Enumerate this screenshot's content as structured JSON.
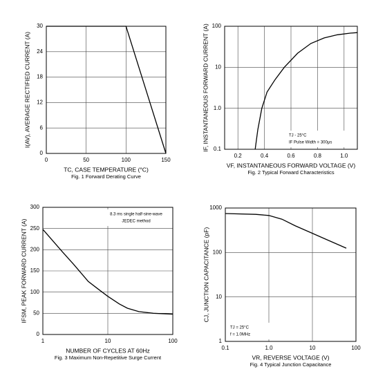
{
  "chart_data": [
    {
      "type": "line",
      "title": "Fig. 1  Forward Derating Curve",
      "xlabel": "TC, CASE TEMPERATURE (°C)",
      "ylabel": "I(AV), AVERAGE RECTIFIED CURRENT (A)",
      "x": [
        0,
        100,
        150
      ],
      "series": [
        {
          "color": "#000000",
          "values": [
            30,
            30,
            0
          ]
        }
      ],
      "xlim": [
        0,
        150
      ],
      "xticks": [
        0,
        50,
        100,
        150
      ],
      "ylim": [
        0,
        30
      ],
      "yticks": [
        0,
        6,
        12,
        18,
        24,
        30
      ],
      "grid": true
    },
    {
      "type": "line",
      "title": "Fig. 2  Typical Forward Characteristics",
      "xlabel": "VF, INSTANTANEOUS FORWARD VOLTAGE (V)",
      "ylabel": "IF, INSTANTANEOUS FORWARD CURRENT (A)",
      "x": [
        0.33,
        0.35,
        0.38,
        0.42,
        0.48,
        0.55,
        0.65,
        0.75,
        0.85,
        0.95,
        1.05,
        1.1
      ],
      "series": [
        {
          "color": "#000000",
          "values": [
            0.1,
            0.3,
            1,
            2.5,
            5,
            10,
            22,
            38,
            52,
            62,
            68,
            70
          ]
        }
      ],
      "xlim": [
        0.1,
        1.1
      ],
      "xticks": [
        0.2,
        0.4,
        0.6,
        0.8,
        {
          "value": 1,
          "label": "1.0"
        }
      ],
      "ylim": [
        0.1,
        100
      ],
      "yticks": [
        0.1,
        {
          "value": 1,
          "label": "1.0"
        },
        10,
        100
      ],
      "ylog": true,
      "grid": true,
      "annotations": [
        "TJ - 25°C",
        "IF Pulse Width = 300μs"
      ],
      "annotation_corner": "lower-right"
    },
    {
      "type": "line",
      "title": "Fig. 3  Maximum Non-Repetitive Surge Current",
      "xlabel": "NUMBER OF CYCLES AT 60Hz",
      "ylabel": "IFSM, PEAK FORWARD CURRENT (A)",
      "x": [
        1,
        2,
        3,
        5,
        7,
        10,
        15,
        20,
        30,
        50,
        100
      ],
      "series": [
        {
          "color": "#000000",
          "values": [
            248,
            195,
            165,
            125,
            108,
            90,
            72,
            62,
            54,
            50,
            48
          ]
        }
      ],
      "xlim": [
        1,
        100
      ],
      "xticks": [
        1,
        10,
        100
      ],
      "xlog": true,
      "ylim": [
        0,
        300
      ],
      "yticks": [
        0,
        50,
        100,
        150,
        200,
        250,
        300
      ],
      "grid": true,
      "annotations": [
        "8.3 ms single half-sine-wave",
        "JEDEC method"
      ],
      "annotation_corner": "upper-right"
    },
    {
      "type": "line",
      "title": "Fig. 4  Typical Junction Capacitance",
      "xlabel": "VR, REVERSE VOLTAGE (V)",
      "ylabel": "CJ, JUNCTION CAPACITANCE (pF)",
      "x": [
        0.1,
        0.5,
        1,
        2,
        4,
        10,
        20,
        60
      ],
      "series": [
        {
          "color": "#000000",
          "values": [
            750,
            720,
            680,
            560,
            400,
            270,
            200,
            125
          ]
        }
      ],
      "xlim": [
        0.1,
        100
      ],
      "xticks": [
        0.1,
        {
          "value": 1,
          "label": "1.0"
        },
        10,
        100
      ],
      "xlog": true,
      "ylim": [
        1,
        1000
      ],
      "yticks": [
        1,
        10,
        100,
        1000
      ],
      "ylog": true,
      "grid": true,
      "annotations": [
        "TJ = 25°C",
        "f = 1.0MHz"
      ],
      "annotation_corner": "lower-left"
    }
  ]
}
